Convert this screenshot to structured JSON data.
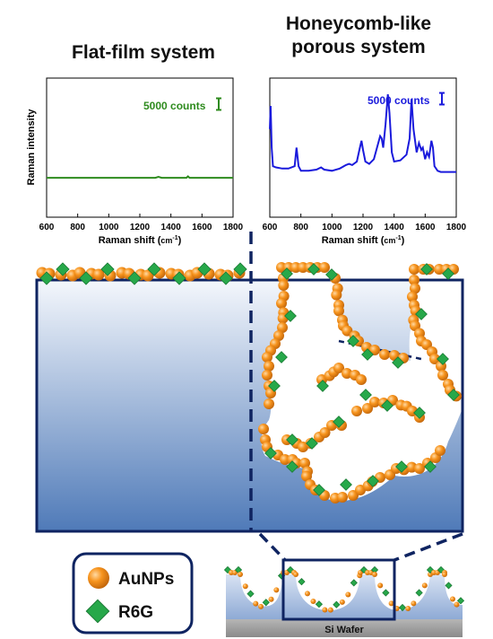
{
  "titles": {
    "left": "Flat-film system",
    "right_line1": "Honeycomb-like",
    "right_line2": "porous system"
  },
  "chart_data": [
    {
      "type": "line",
      "panel": "flat-film",
      "xlabel": "Raman shift (cm-1)",
      "xlabel_main": "Raman shift (",
      "xlabel_unit": "cm",
      "xlabel_sup": "-1",
      "xlabel_close": ")",
      "ylabel": "Raman intensity",
      "xlim": [
        600,
        1800
      ],
      "ylim": [
        0,
        60000
      ],
      "xticks": [
        600,
        800,
        1000,
        1200,
        1400,
        1600,
        1800
      ],
      "scale_bar_label": "5000 counts",
      "scale_bar_value": 5000,
      "color": "#2e8b1e",
      "x": [
        600,
        800,
        1000,
        1200,
        1300,
        1320,
        1340,
        1400,
        1500,
        1510,
        1520,
        1600,
        1800
      ],
      "y": [
        17000,
        17000,
        17000,
        17000,
        17000,
        17400,
        17000,
        17000,
        17000,
        17600,
        17000,
        17000,
        17000
      ]
    },
    {
      "type": "line",
      "panel": "honeycomb-porous",
      "xlabel": "Raman shift (cm-1)",
      "xlabel_main": "Raman shift (",
      "xlabel_unit": "cm",
      "xlabel_sup": "-1",
      "xlabel_close": ")",
      "ylabel": "",
      "xlim": [
        600,
        1800
      ],
      "ylim": [
        0,
        60000
      ],
      "xticks": [
        600,
        800,
        1000,
        1200,
        1400,
        1600,
        1800
      ],
      "scale_bar_label": "5000 counts",
      "scale_bar_value": 5000,
      "color": "#1a1adc",
      "x": [
        600,
        605,
        612,
        620,
        640,
        680,
        720,
        760,
        772,
        785,
        800,
        850,
        900,
        930,
        950,
        1000,
        1050,
        1090,
        1110,
        1130,
        1160,
        1180,
        1190,
        1200,
        1215,
        1240,
        1270,
        1290,
        1310,
        1320,
        1330,
        1345,
        1360,
        1370,
        1385,
        1400,
        1440,
        1480,
        1500,
        1512,
        1525,
        1545,
        1560,
        1575,
        1585,
        1600,
        1612,
        1625,
        1640,
        1650,
        1660,
        1680,
        1700,
        1750,
        1800
      ],
      "y": [
        38000,
        48000,
        30000,
        22000,
        21500,
        21000,
        21000,
        22000,
        30000,
        22000,
        20000,
        20000,
        20500,
        21500,
        20500,
        20000,
        21000,
        22500,
        23000,
        22500,
        24000,
        30000,
        33000,
        29000,
        24000,
        23000,
        25000,
        30000,
        35000,
        34000,
        30000,
        40000,
        53000,
        45000,
        28000,
        24000,
        24500,
        27000,
        34000,
        51000,
        38000,
        28000,
        32000,
        29000,
        30000,
        25000,
        28000,
        26000,
        33000,
        30000,
        22000,
        20000,
        19500,
        19500,
        19500
      ]
    }
  ],
  "legend": {
    "aunps_label": "AuNPs",
    "r6g_label": "R6G",
    "aunp_color": "#f7941d",
    "r6g_color": "#27a84a"
  },
  "substrate": {
    "label": "Si Wafer"
  },
  "colors": {
    "frame": "#0f2461",
    "film_top": "#f4f7fc",
    "film_bottom": "#4f7ab8"
  }
}
